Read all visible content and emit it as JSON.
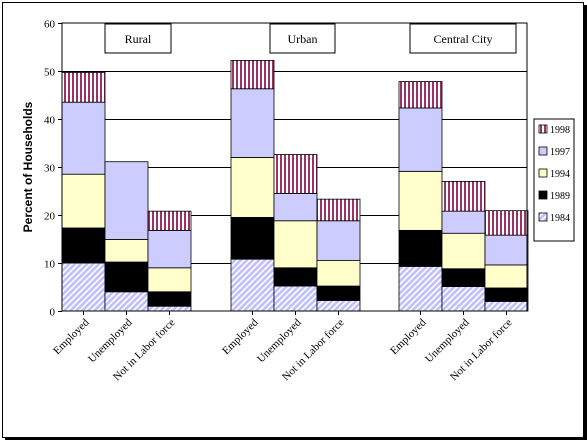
{
  "chart_data": {
    "type": "bar",
    "stacked": true,
    "groups": [
      "Rural",
      "Urban",
      "Central City"
    ],
    "categories": [
      "Employed",
      "Unemployed",
      "Not in Labor force"
    ],
    "ylabel": "Percent of Households",
    "ylim": [
      0,
      60
    ],
    "yticks": [
      0,
      10,
      20,
      30,
      40,
      50,
      60
    ],
    "grid": true,
    "legend_position": "right",
    "series": [
      {
        "name": "1984",
        "pattern": "diagonal-hatch",
        "color": "#c0c0ff",
        "values": [
          [
            10,
            4,
            1
          ],
          [
            10.8,
            5.2,
            2.2
          ],
          [
            9.3,
            5.1,
            2
          ]
        ]
      },
      {
        "name": "1989",
        "pattern": "solid",
        "color": "#000000",
        "values": [
          [
            7.3,
            6.2,
            3
          ],
          [
            8.7,
            3.8,
            3
          ],
          [
            7.5,
            3.7,
            2.8
          ]
        ]
      },
      {
        "name": "1994",
        "pattern": "solid",
        "color": "#ffffcc",
        "values": [
          [
            11.2,
            4.7,
            5
          ],
          [
            12.5,
            9.8,
            5.3
          ],
          [
            12.3,
            7.4,
            4.8
          ]
        ]
      },
      {
        "name": "1997",
        "pattern": "solid",
        "color": "#ccccff",
        "values": [
          [
            15,
            16.2,
            7.8
          ],
          [
            14.3,
            5.7,
            8.3
          ],
          [
            13.2,
            4.6,
            6.2
          ]
        ]
      },
      {
        "name": "1998",
        "pattern": "vertical-stripes",
        "color": "#993366",
        "values": [
          [
            6.2,
            0,
            4
          ],
          [
            5.9,
            8.1,
            4.5
          ],
          [
            5.5,
            6.2,
            5.1
          ]
        ]
      }
    ]
  }
}
